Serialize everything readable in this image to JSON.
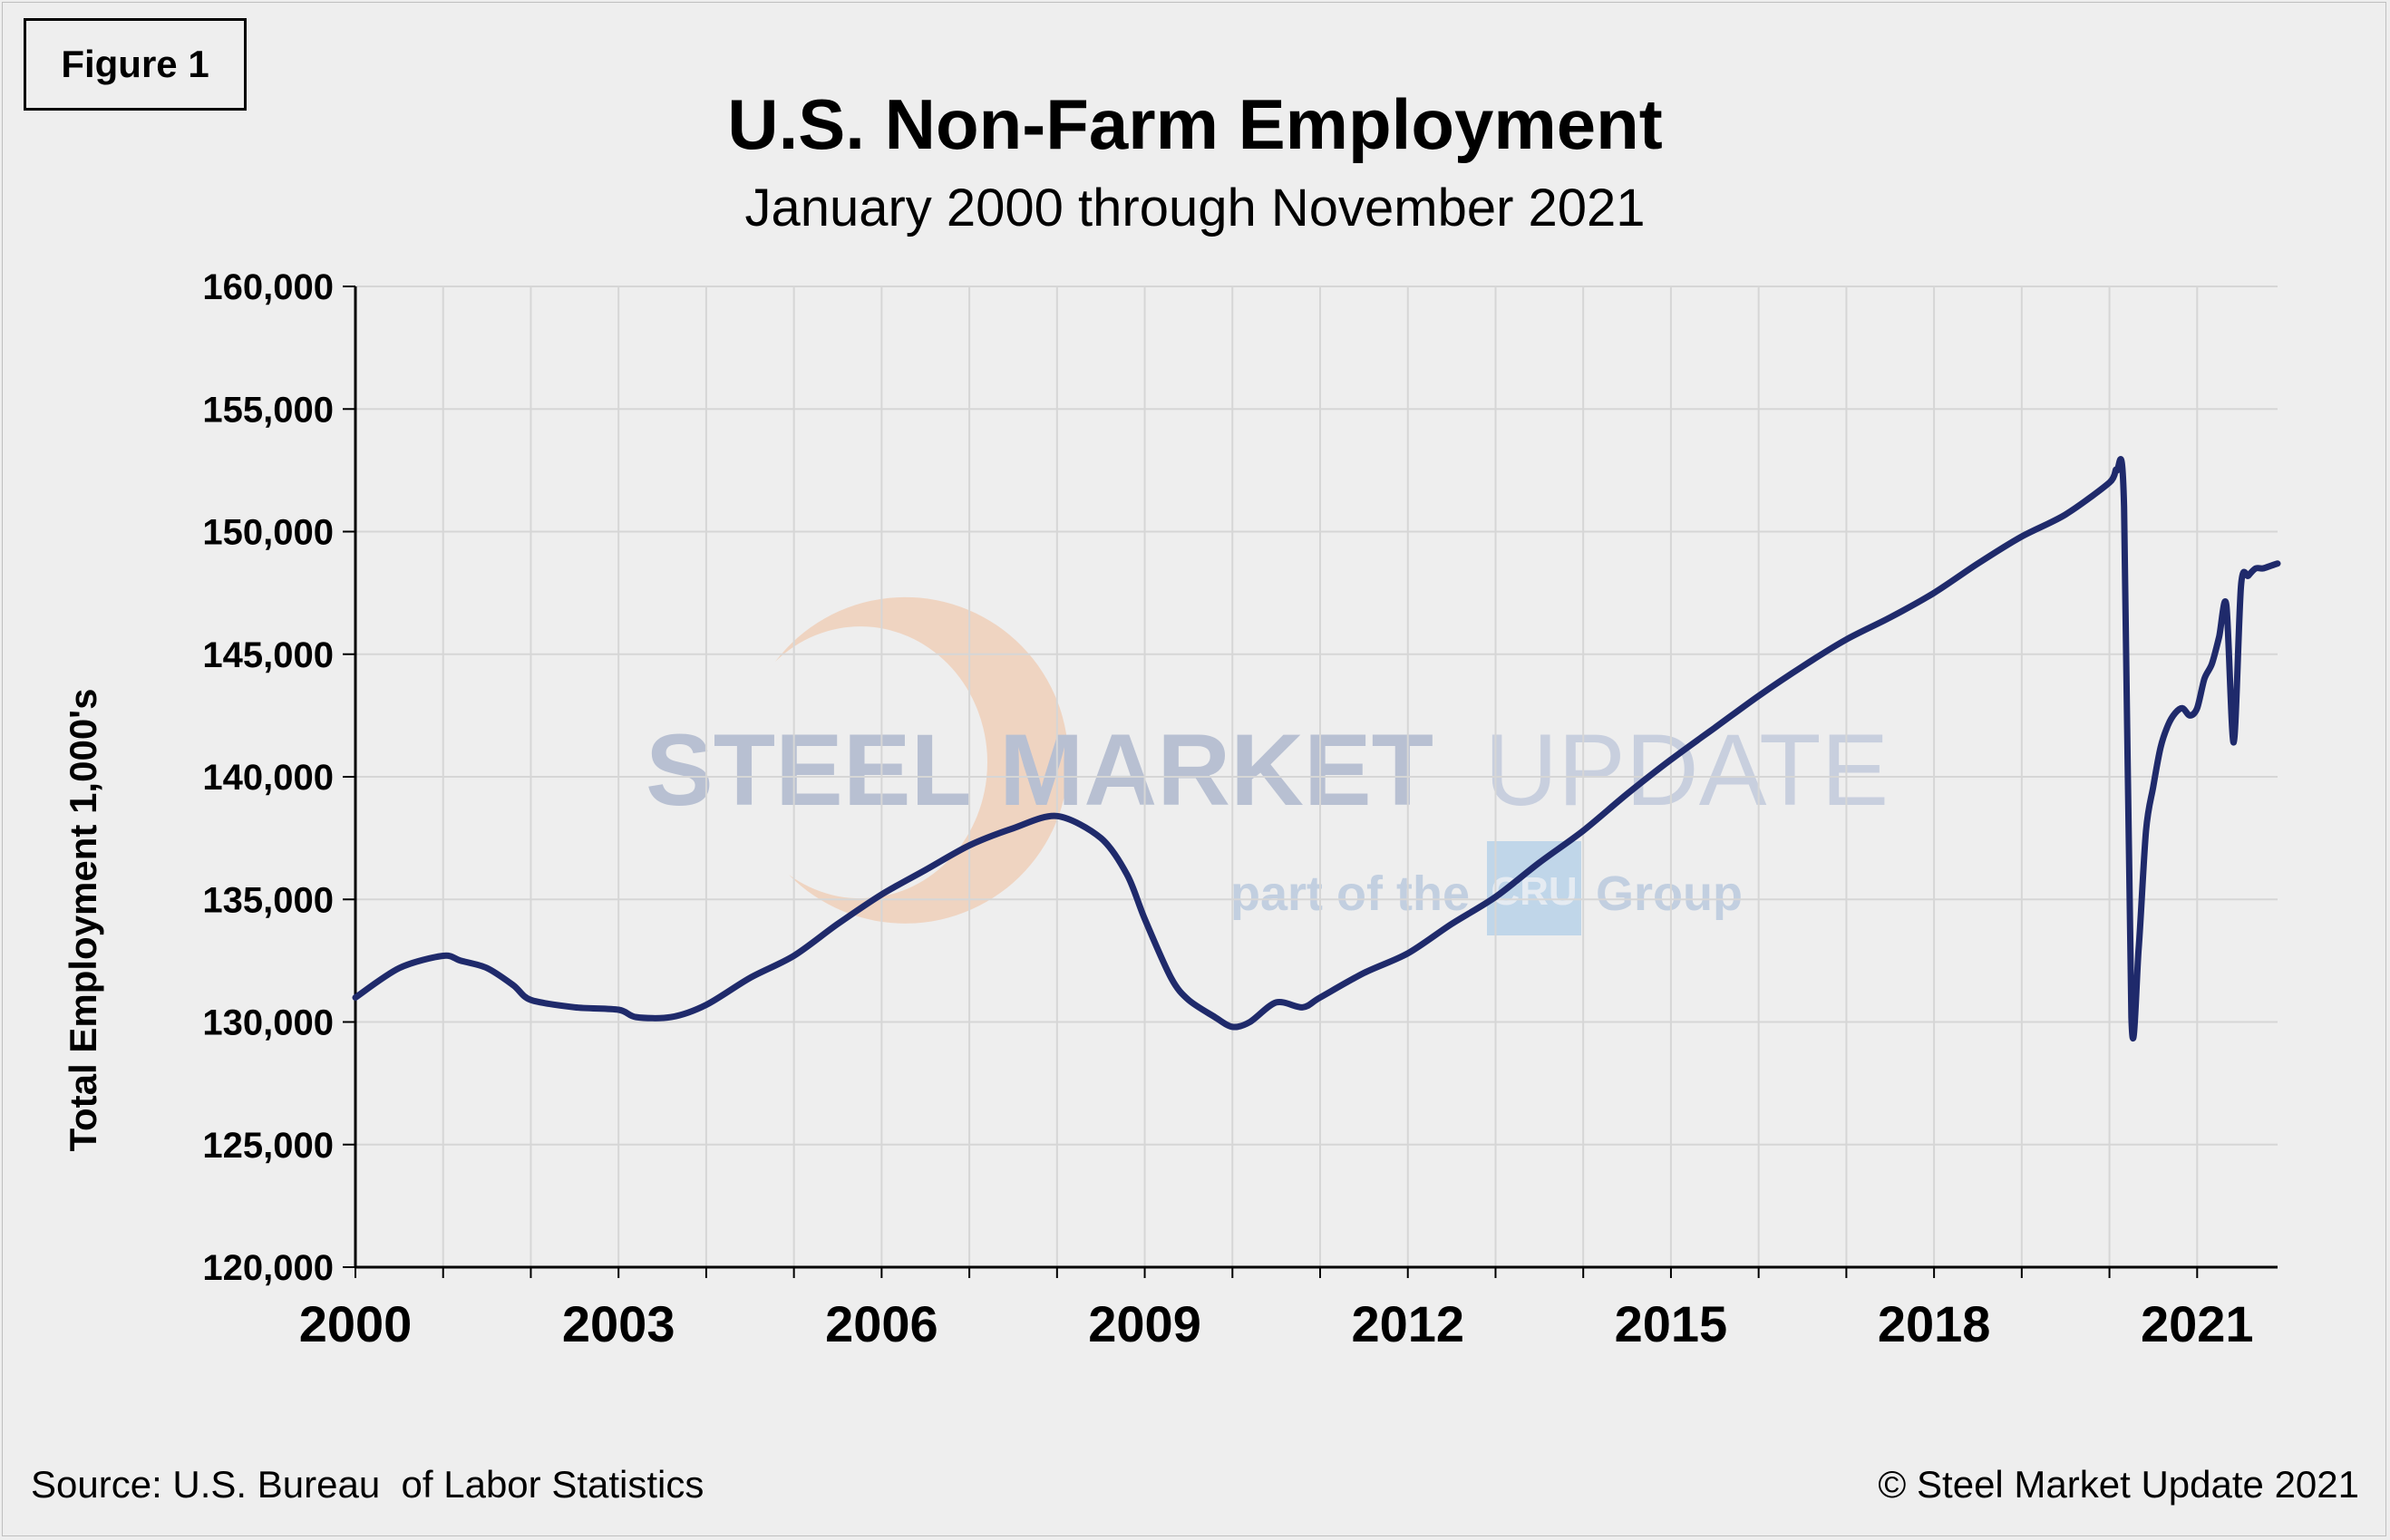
{
  "figure_label": "Figure 1",
  "footer": {
    "source": "Source: U.S. Bureau  of Labor Statistics",
    "copyright": "© Steel Market Update 2021"
  },
  "watermark": {
    "line1_bold": "STEEL MARKET",
    "line1_light": "UPDATE",
    "line2_left": "part of the",
    "line2_logo": "CRU",
    "line2_right": "Group"
  },
  "colors": {
    "line": "#1f2a6b",
    "grid": "#d6d6d6",
    "axis": "#000000",
    "background": "#eeeeee"
  },
  "chart_data": {
    "type": "line",
    "title": "U.S. Non-Farm Employment",
    "subtitle": "January 2000 through November 2021",
    "xlabel": "",
    "ylabel": "Total Employment 1,000's",
    "xlim": [
      2000,
      2021.917
    ],
    "ylim": [
      120000,
      160000
    ],
    "y_ticks": [
      120000,
      125000,
      130000,
      135000,
      140000,
      145000,
      150000,
      155000,
      160000
    ],
    "y_tick_labels": [
      "120,000",
      "125,000",
      "130,000",
      "135,000",
      "140,000",
      "145,000",
      "150,000",
      "155,000",
      "160,000"
    ],
    "x_ticks": [
      2000,
      2003,
      2006,
      2009,
      2012,
      2015,
      2018,
      2021
    ],
    "x_tick_labels": [
      "2000",
      "2003",
      "2006",
      "2009",
      "2012",
      "2015",
      "2018",
      "2021"
    ],
    "grid": true,
    "series": [
      {
        "x": [
          2000.0,
          2000.5,
          2001.0,
          2001.2,
          2001.5,
          2001.8,
          2002.0,
          2002.5,
          2003.0,
          2003.2,
          2003.6,
          2004.0,
          2004.5,
          2005.0,
          2005.5,
          2006.0,
          2006.5,
          2007.0,
          2007.5,
          2008.0,
          2008.5,
          2008.8,
          2009.0,
          2009.3,
          2009.5,
          2009.8,
          2010.0,
          2010.2,
          2010.5,
          2010.8,
          2011.0,
          2011.5,
          2012.0,
          2012.5,
          2013.0,
          2013.5,
          2014.0,
          2014.5,
          2015.0,
          2015.5,
          2016.0,
          2016.5,
          2017.0,
          2017.5,
          2018.0,
          2018.5,
          2019.0,
          2019.5,
          2020.0,
          2020.083,
          2020.167,
          2020.25,
          2020.333,
          2020.417,
          2020.5,
          2020.583,
          2020.667,
          2020.75,
          2020.833,
          2020.917,
          2021.0,
          2021.083,
          2021.167,
          2021.25,
          2021.333,
          2021.417,
          2021.5,
          2021.583,
          2021.667,
          2021.75,
          2021.833,
          2021.917
        ],
        "values": [
          131000,
          132200,
          132700,
          132500,
          132200,
          131500,
          130900,
          130600,
          130500,
          130200,
          130200,
          130700,
          131800,
          132700,
          134000,
          135200,
          136200,
          137200,
          137900,
          138400,
          137500,
          136000,
          134200,
          131800,
          130900,
          130200,
          129800,
          130000,
          130800,
          130600,
          131000,
          132000,
          132800,
          134000,
          135100,
          136500,
          137800,
          139300,
          140700,
          142000,
          143300,
          144500,
          145600,
          146500,
          147500,
          148700,
          149800,
          150700,
          152000,
          152500,
          151000,
          130200,
          133000,
          137800,
          139600,
          141200,
          142100,
          142600,
          142800,
          142500,
          142800,
          144000,
          144600,
          145700,
          147000,
          141400,
          147800,
          148200,
          148500,
          148500,
          148600,
          148700
        ]
      }
    ]
  }
}
